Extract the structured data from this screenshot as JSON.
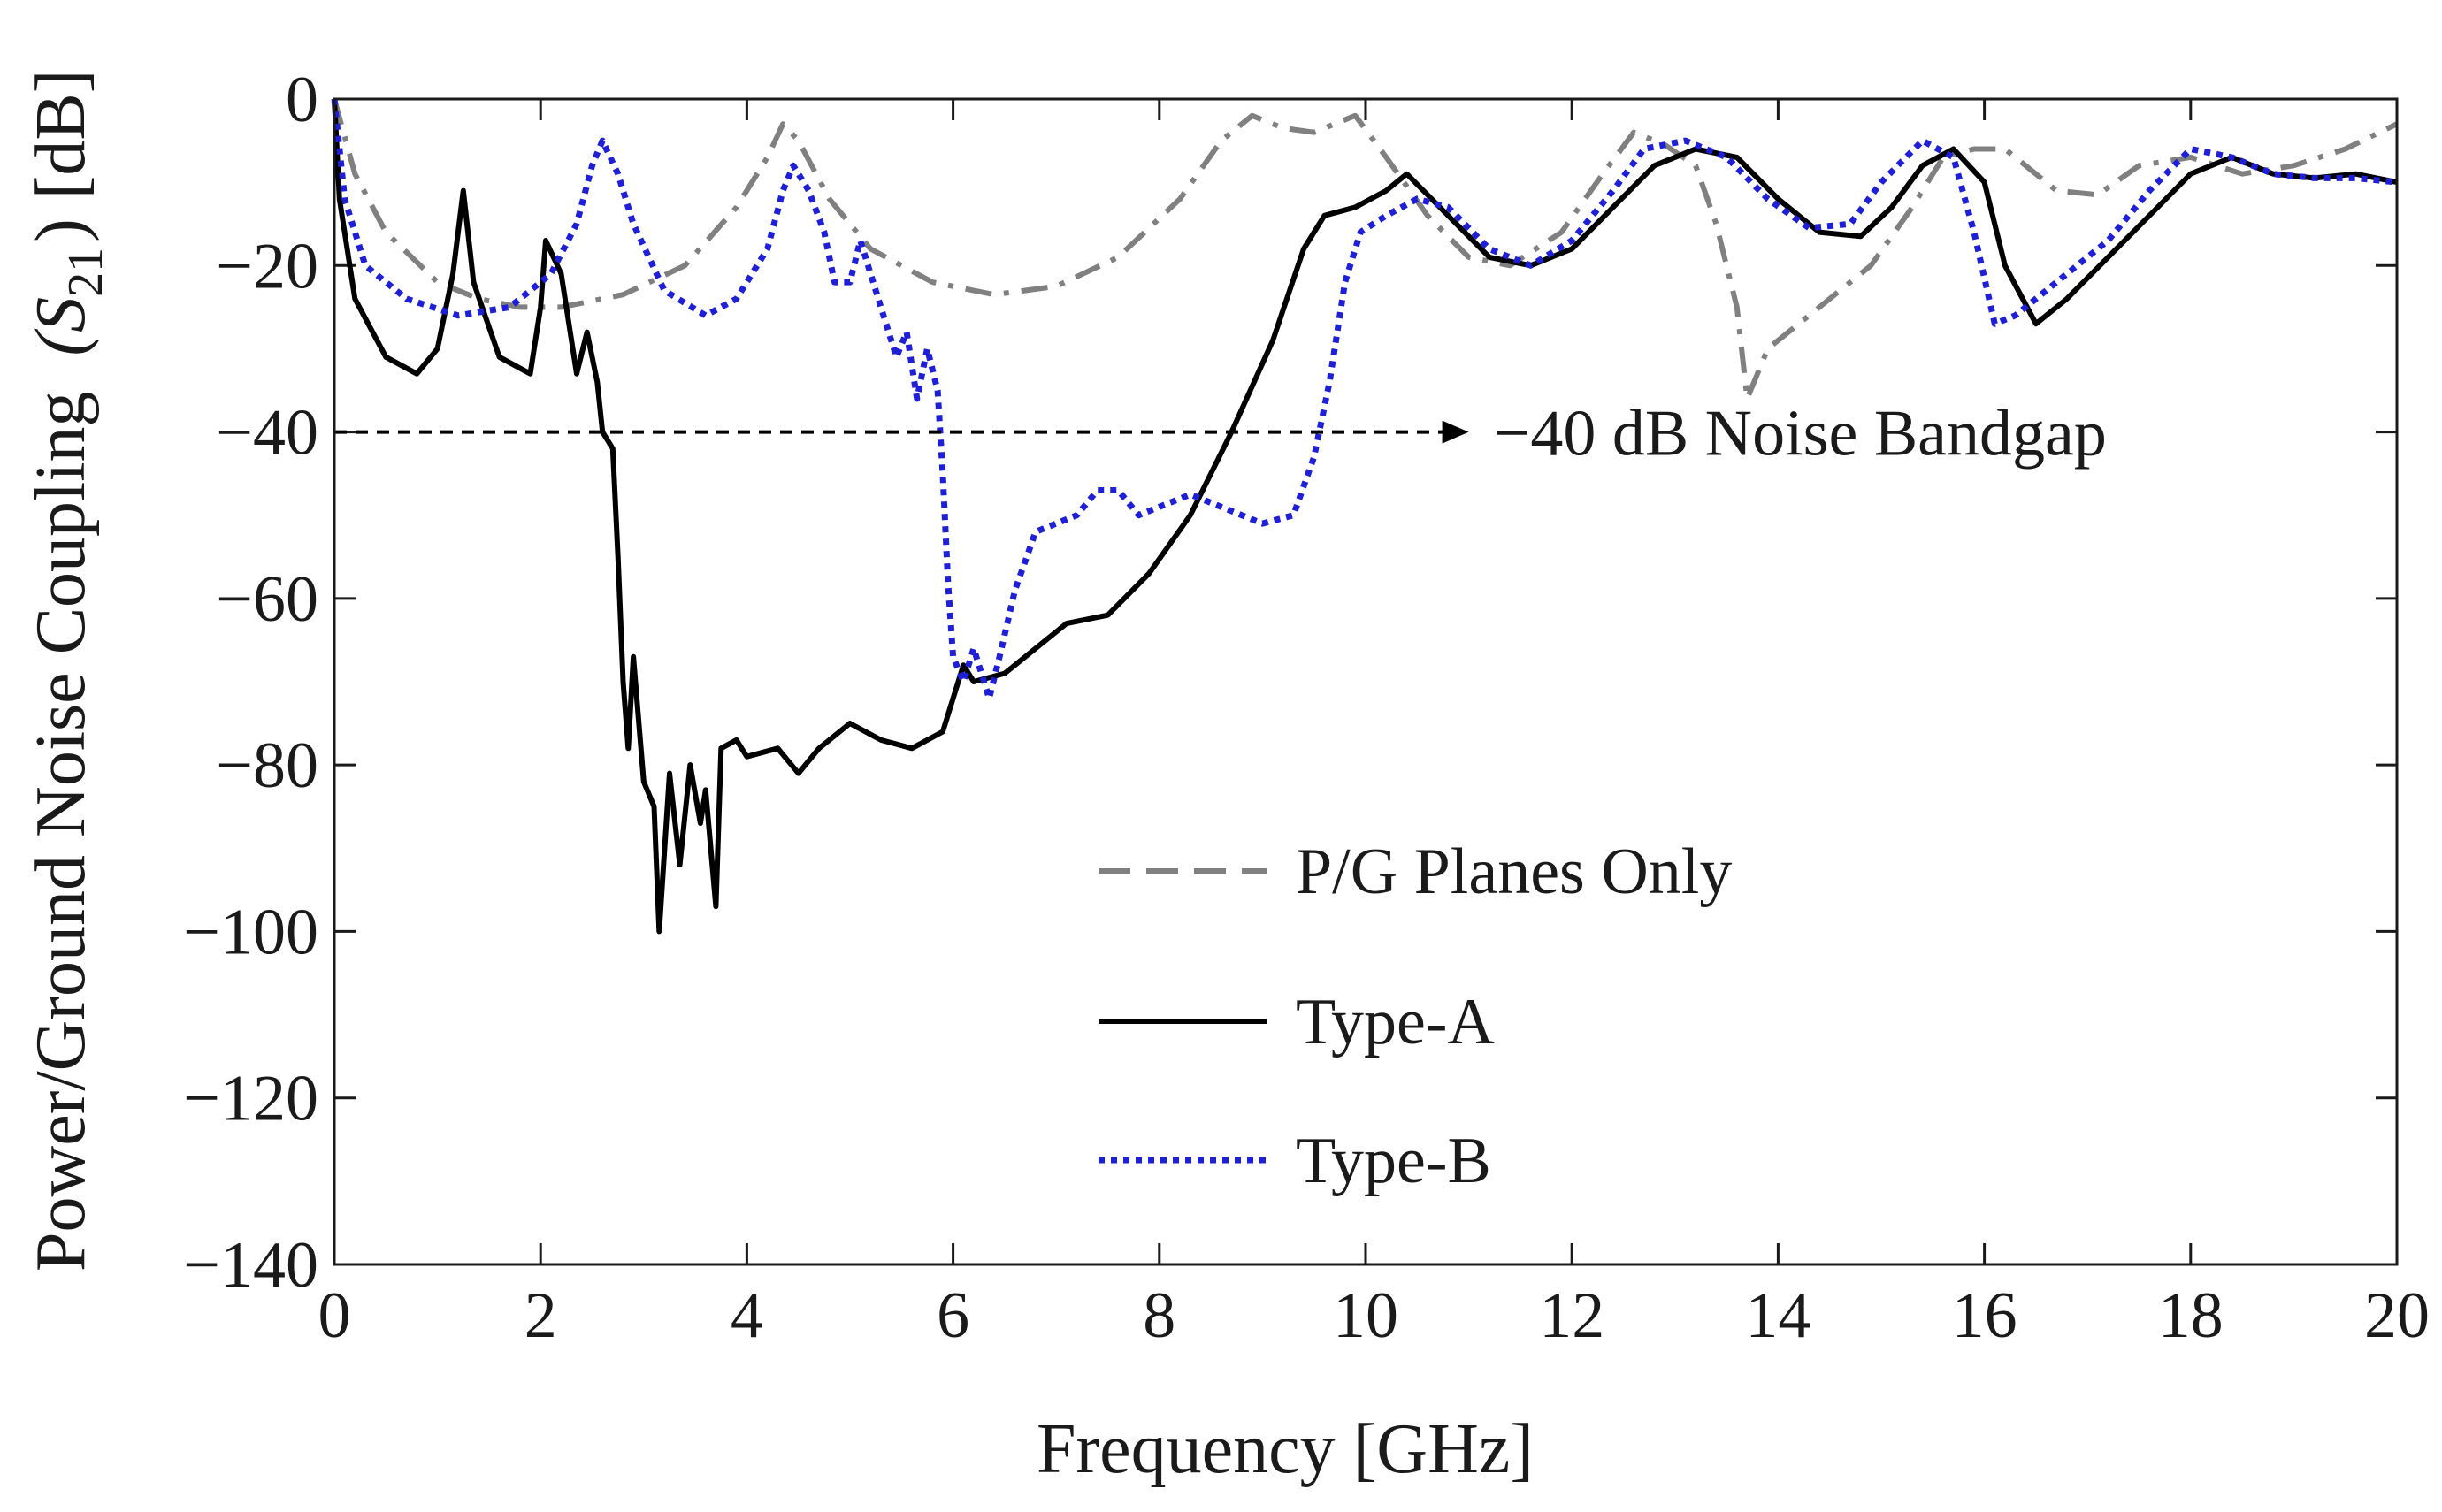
{
  "chart_data": {
    "type": "line",
    "title": "",
    "xlabel": "Frequency  [GHz]",
    "ylabel_main": "Power/Ground  Noise Coupling",
    "ylabel_symbol": "(S",
    "ylabel_subscript": "21",
    "ylabel_close": ")",
    "ylabel_unit": "[dB]",
    "xlim": [
      0,
      20
    ],
    "ylim": [
      -140,
      0
    ],
    "xticks": [
      0,
      2,
      4,
      6,
      8,
      10,
      12,
      14,
      16,
      18,
      20
    ],
    "yticks": [
      0,
      -20,
      -40,
      -60,
      -80,
      -100,
      -120,
      -140
    ],
    "xtick_labels": [
      "0",
      "2",
      "4",
      "6",
      "8",
      "10",
      "12",
      "14",
      "16",
      "18",
      "20"
    ],
    "ytick_labels": [
      "0",
      "−20",
      "−40",
      "−60",
      "−80",
      "−100",
      "−120",
      "−140"
    ],
    "grid": false,
    "legend_position": "bottom-center",
    "annotation": {
      "text": "−40 dB Noise Bandgap",
      "arrow_from": [
        0,
        -40
      ],
      "arrow_to": [
        11,
        -40
      ]
    },
    "series": [
      {
        "name": "P/G Planes Only",
        "color": "#808080",
        "style": "dashdot",
        "points": [
          [
            0,
            0
          ],
          [
            0.2,
            -9
          ],
          [
            0.5,
            -16
          ],
          [
            1.0,
            -22
          ],
          [
            1.4,
            -24
          ],
          [
            1.8,
            -25
          ],
          [
            2.2,
            -25
          ],
          [
            2.8,
            -23.5
          ],
          [
            3.4,
            -20
          ],
          [
            3.9,
            -13
          ],
          [
            4.2,
            -7
          ],
          [
            4.35,
            -3
          ],
          [
            4.5,
            -5
          ],
          [
            4.8,
            -12
          ],
          [
            5.2,
            -18
          ],
          [
            5.8,
            -22
          ],
          [
            6.4,
            -23.5
          ],
          [
            7.0,
            -22.5
          ],
          [
            7.6,
            -19
          ],
          [
            8.2,
            -12
          ],
          [
            8.6,
            -5
          ],
          [
            8.9,
            -2
          ],
          [
            9.2,
            -3.5
          ],
          [
            9.5,
            -4
          ],
          [
            9.9,
            -2
          ],
          [
            10.2,
            -7
          ],
          [
            10.6,
            -14
          ],
          [
            11.0,
            -19
          ],
          [
            11.4,
            -20
          ],
          [
            11.9,
            -16
          ],
          [
            12.3,
            -9
          ],
          [
            12.6,
            -4
          ],
          [
            12.9,
            -5.5
          ],
          [
            13.2,
            -8
          ],
          [
            13.4,
            -15
          ],
          [
            13.6,
            -25
          ],
          [
            13.7,
            -36
          ],
          [
            13.9,
            -30
          ],
          [
            14.4,
            -25
          ],
          [
            14.9,
            -20
          ],
          [
            15.3,
            -13
          ],
          [
            15.6,
            -7
          ],
          [
            15.9,
            -6
          ],
          [
            16.2,
            -6
          ],
          [
            16.7,
            -11
          ],
          [
            17.1,
            -11.5
          ],
          [
            17.5,
            -8
          ],
          [
            18.0,
            -7
          ],
          [
            18.5,
            -9
          ],
          [
            19.0,
            -8
          ],
          [
            19.5,
            -6
          ],
          [
            20.0,
            -3
          ]
        ]
      },
      {
        "name": "Type-A",
        "color": "#000000",
        "style": "solid",
        "points": [
          [
            0,
            0
          ],
          [
            0.05,
            -12
          ],
          [
            0.2,
            -24
          ],
          [
            0.5,
            -31
          ],
          [
            0.8,
            -33
          ],
          [
            1.0,
            -30
          ],
          [
            1.15,
            -21
          ],
          [
            1.25,
            -11
          ],
          [
            1.35,
            -22
          ],
          [
            1.6,
            -31
          ],
          [
            1.9,
            -33
          ],
          [
            2.0,
            -25
          ],
          [
            2.05,
            -17
          ],
          [
            2.2,
            -21
          ],
          [
            2.35,
            -33
          ],
          [
            2.45,
            -28
          ],
          [
            2.55,
            -34
          ],
          [
            2.6,
            -40
          ],
          [
            2.7,
            -42
          ],
          [
            2.75,
            -55
          ],
          [
            2.8,
            -70
          ],
          [
            2.85,
            -78
          ],
          [
            2.9,
            -67
          ],
          [
            3.0,
            -82
          ],
          [
            3.1,
            -85
          ],
          [
            3.15,
            -100
          ],
          [
            3.25,
            -81
          ],
          [
            3.35,
            -92
          ],
          [
            3.45,
            -80
          ],
          [
            3.55,
            -87
          ],
          [
            3.6,
            -83
          ],
          [
            3.7,
            -97
          ],
          [
            3.75,
            -78
          ],
          [
            3.9,
            -77
          ],
          [
            4.0,
            -79
          ],
          [
            4.3,
            -78
          ],
          [
            4.5,
            -81
          ],
          [
            4.7,
            -78
          ],
          [
            5.0,
            -75
          ],
          [
            5.3,
            -77
          ],
          [
            5.6,
            -78
          ],
          [
            5.9,
            -76
          ],
          [
            6.0,
            -72
          ],
          [
            6.1,
            -68
          ],
          [
            6.2,
            -70
          ],
          [
            6.5,
            -69
          ],
          [
            6.8,
            -66
          ],
          [
            7.1,
            -63
          ],
          [
            7.5,
            -62
          ],
          [
            7.9,
            -57
          ],
          [
            8.3,
            -50
          ],
          [
            8.7,
            -40
          ],
          [
            9.1,
            -29
          ],
          [
            9.4,
            -18
          ],
          [
            9.6,
            -14
          ],
          [
            9.9,
            -13
          ],
          [
            10.2,
            -11
          ],
          [
            10.4,
            -9
          ],
          [
            10.8,
            -14
          ],
          [
            11.2,
            -19
          ],
          [
            11.6,
            -20
          ],
          [
            12.0,
            -18
          ],
          [
            12.4,
            -13
          ],
          [
            12.8,
            -8
          ],
          [
            13.2,
            -6
          ],
          [
            13.6,
            -7
          ],
          [
            14.0,
            -12
          ],
          [
            14.4,
            -16
          ],
          [
            14.8,
            -16.5
          ],
          [
            15.1,
            -13
          ],
          [
            15.4,
            -8
          ],
          [
            15.7,
            -6
          ],
          [
            16.0,
            -10
          ],
          [
            16.2,
            -20
          ],
          [
            16.5,
            -27
          ],
          [
            16.8,
            -24
          ],
          [
            17.2,
            -19
          ],
          [
            17.6,
            -14
          ],
          [
            18.0,
            -9
          ],
          [
            18.4,
            -7
          ],
          [
            18.8,
            -9
          ],
          [
            19.2,
            -9.5
          ],
          [
            19.6,
            -9
          ],
          [
            20.0,
            -10
          ]
        ]
      },
      {
        "name": "Type-B",
        "color": "#1f1fd6",
        "style": "dotted",
        "points": [
          [
            0,
            0
          ],
          [
            0.1,
            -12
          ],
          [
            0.3,
            -20
          ],
          [
            0.7,
            -24
          ],
          [
            1.2,
            -26
          ],
          [
            1.7,
            -25
          ],
          [
            2.1,
            -21
          ],
          [
            2.35,
            -15
          ],
          [
            2.5,
            -8
          ],
          [
            2.6,
            -5
          ],
          [
            2.75,
            -9
          ],
          [
            2.9,
            -15
          ],
          [
            3.2,
            -23
          ],
          [
            3.6,
            -26
          ],
          [
            3.9,
            -24
          ],
          [
            4.2,
            -18
          ],
          [
            4.35,
            -11
          ],
          [
            4.45,
            -8
          ],
          [
            4.6,
            -11
          ],
          [
            4.75,
            -16
          ],
          [
            4.85,
            -22
          ],
          [
            5.0,
            -22
          ],
          [
            5.1,
            -17
          ],
          [
            5.2,
            -21
          ],
          [
            5.3,
            -25
          ],
          [
            5.45,
            -31
          ],
          [
            5.55,
            -28
          ],
          [
            5.65,
            -36
          ],
          [
            5.75,
            -30
          ],
          [
            5.85,
            -35
          ],
          [
            5.9,
            -45
          ],
          [
            5.95,
            -58
          ],
          [
            6.0,
            -67
          ],
          [
            6.1,
            -70
          ],
          [
            6.2,
            -66
          ],
          [
            6.3,
            -70
          ],
          [
            6.35,
            -72
          ],
          [
            6.45,
            -67
          ],
          [
            6.6,
            -59
          ],
          [
            6.8,
            -52
          ],
          [
            7.0,
            -51
          ],
          [
            7.2,
            -50
          ],
          [
            7.4,
            -47
          ],
          [
            7.6,
            -47
          ],
          [
            7.8,
            -50
          ],
          [
            8.0,
            -49
          ],
          [
            8.3,
            -47.5
          ],
          [
            8.6,
            -49
          ],
          [
            9.0,
            -51
          ],
          [
            9.3,
            -50
          ],
          [
            9.5,
            -43
          ],
          [
            9.65,
            -34
          ],
          [
            9.8,
            -22
          ],
          [
            9.95,
            -16
          ],
          [
            10.2,
            -14
          ],
          [
            10.5,
            -12
          ],
          [
            10.8,
            -13
          ],
          [
            11.2,
            -18
          ],
          [
            11.6,
            -20
          ],
          [
            12.0,
            -17
          ],
          [
            12.4,
            -11
          ],
          [
            12.7,
            -6
          ],
          [
            13.1,
            -5
          ],
          [
            13.5,
            -7
          ],
          [
            13.9,
            -12
          ],
          [
            14.3,
            -15.5
          ],
          [
            14.7,
            -15
          ],
          [
            15.0,
            -10
          ],
          [
            15.4,
            -5
          ],
          [
            15.7,
            -7
          ],
          [
            15.9,
            -16
          ],
          [
            16.1,
            -27
          ],
          [
            16.3,
            -26
          ],
          [
            16.7,
            -22
          ],
          [
            17.2,
            -17
          ],
          [
            17.6,
            -11
          ],
          [
            18.0,
            -6
          ],
          [
            18.4,
            -7
          ],
          [
            18.8,
            -9
          ],
          [
            19.2,
            -9.5
          ],
          [
            19.6,
            -9.5
          ],
          [
            20.0,
            -10
          ]
        ]
      }
    ]
  }
}
